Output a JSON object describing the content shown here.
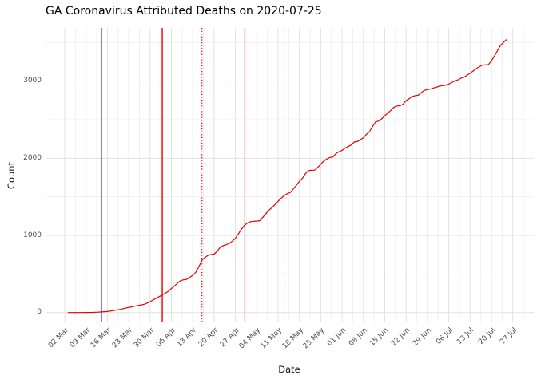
{
  "title": "GA Coronavirus Attributed Deaths on 2020-07-25",
  "chart_data": {
    "type": "line",
    "title": "GA Coronavirus Attributed Deaths on 2020-07-25",
    "xlabel": "Date",
    "ylabel": "Count",
    "legend": "none",
    "grid": "major+minor",
    "background": "#ffffff",
    "major_grid_color": "#e2e2e2",
    "minor_grid_color": "#f0f0f0",
    "line_color": "#e60000",
    "tick_label_color": "#4d4d4d",
    "x_base": "2020-03-02",
    "x_domain_days": [
      -6.3,
      153.9
    ],
    "ylim": [
      -127,
      3689
    ],
    "y_ticks": [
      0,
      1000,
      2000,
      3000
    ],
    "y_minor_ticks": [
      500,
      1500,
      2500,
      3500
    ],
    "x_tick_labels": [
      "02 Mar",
      "09 Mar",
      "16 Mar",
      "23 Mar",
      "30 Mar",
      "06 Apr",
      "13 Apr",
      "20 Apr",
      "27 Apr",
      "04 May",
      "11 May",
      "18 May",
      "25 May",
      "01 Jun",
      "08 Jun",
      "15 Jun",
      "22 Jun",
      "29 Jun",
      "06 Jul",
      "13 Jul",
      "20 Jul",
      "27 Jul"
    ],
    "vlines": [
      {
        "date": "2020-03-14",
        "color": "#0000ee",
        "style": "solid"
      },
      {
        "date": "2020-04-03",
        "color": "#ee0000",
        "style": "solid"
      },
      {
        "date": "2020-04-16",
        "color": "#ee0000",
        "style": "dotted"
      },
      {
        "date": "2020-04-30",
        "color": "#ffb6c1",
        "style": "solid"
      },
      {
        "date": "2020-05-13",
        "color": "#ffb6c1",
        "style": "dotted"
      }
    ],
    "points": [
      [
        "2020-03-03",
        0
      ],
      [
        "2020-03-05",
        0
      ],
      [
        "2020-03-07",
        0
      ],
      [
        "2020-03-09",
        1
      ],
      [
        "2020-03-11",
        2
      ],
      [
        "2020-03-13",
        5
      ],
      [
        "2020-03-14",
        8
      ],
      [
        "2020-03-16",
        14
      ],
      [
        "2020-03-18",
        26
      ],
      [
        "2020-03-20",
        40
      ],
      [
        "2020-03-22",
        58
      ],
      [
        "2020-03-24",
        75
      ],
      [
        "2020-03-26",
        92
      ],
      [
        "2020-03-28",
        106
      ],
      [
        "2020-03-30",
        140
      ],
      [
        "2020-03-31",
        165
      ],
      [
        "2020-04-01",
        185
      ],
      [
        "2020-04-02",
        207
      ],
      [
        "2020-04-03",
        229
      ],
      [
        "2020-04-04",
        250
      ],
      [
        "2020-04-05",
        276
      ],
      [
        "2020-04-06",
        311
      ],
      [
        "2020-04-07",
        345
      ],
      [
        "2020-04-08",
        381
      ],
      [
        "2020-04-09",
        414
      ],
      [
        "2020-04-10",
        424
      ],
      [
        "2020-04-11",
        431
      ],
      [
        "2020-04-12",
        456
      ],
      [
        "2020-04-13",
        483
      ],
      [
        "2020-04-14",
        521
      ],
      [
        "2020-04-15",
        592
      ],
      [
        "2020-04-16",
        680
      ],
      [
        "2020-04-17",
        714
      ],
      [
        "2020-04-18",
        742
      ],
      [
        "2020-04-19",
        752
      ],
      [
        "2020-04-20",
        757
      ],
      [
        "2020-04-21",
        793
      ],
      [
        "2020-04-22",
        845
      ],
      [
        "2020-04-23",
        868
      ],
      [
        "2020-04-24",
        881
      ],
      [
        "2020-04-25",
        897
      ],
      [
        "2020-04-26",
        926
      ],
      [
        "2020-04-27",
        962
      ],
      [
        "2020-04-28",
        1022
      ],
      [
        "2020-04-29",
        1082
      ],
      [
        "2020-04-30",
        1132
      ],
      [
        "2020-05-01",
        1162
      ],
      [
        "2020-05-02",
        1178
      ],
      [
        "2020-05-03",
        1183
      ],
      [
        "2020-05-04",
        1185
      ],
      [
        "2020-05-05",
        1192
      ],
      [
        "2020-05-06",
        1235
      ],
      [
        "2020-05-07",
        1281
      ],
      [
        "2020-05-08",
        1327
      ],
      [
        "2020-05-09",
        1361
      ],
      [
        "2020-05-10",
        1400
      ],
      [
        "2020-05-11",
        1442
      ],
      [
        "2020-05-12",
        1481
      ],
      [
        "2020-05-13",
        1516
      ],
      [
        "2020-05-14",
        1541
      ],
      [
        "2020-05-15",
        1557
      ],
      [
        "2020-05-16",
        1601
      ],
      [
        "2020-05-17",
        1650
      ],
      [
        "2020-05-18",
        1700
      ],
      [
        "2020-05-19",
        1741
      ],
      [
        "2020-05-20",
        1802
      ],
      [
        "2020-05-21",
        1840
      ],
      [
        "2020-05-22",
        1844
      ],
      [
        "2020-05-23",
        1846
      ],
      [
        "2020-05-24",
        1881
      ],
      [
        "2020-05-25",
        1922
      ],
      [
        "2020-05-26",
        1965
      ],
      [
        "2020-05-27",
        1990
      ],
      [
        "2020-05-28",
        2010
      ],
      [
        "2020-05-29",
        2017
      ],
      [
        "2020-05-30",
        2061
      ],
      [
        "2020-05-31",
        2086
      ],
      [
        "2020-06-01",
        2103
      ],
      [
        "2020-06-02",
        2131
      ],
      [
        "2020-06-03",
        2151
      ],
      [
        "2020-06-04",
        2172
      ],
      [
        "2020-06-05",
        2211
      ],
      [
        "2020-06-06",
        2217
      ],
      [
        "2020-06-07",
        2241
      ],
      [
        "2020-06-08",
        2265
      ],
      [
        "2020-06-09",
        2311
      ],
      [
        "2020-06-10",
        2345
      ],
      [
        "2020-06-11",
        2411
      ],
      [
        "2020-06-12",
        2472
      ],
      [
        "2020-06-13",
        2482
      ],
      [
        "2020-06-14",
        2511
      ],
      [
        "2020-06-15",
        2551
      ],
      [
        "2020-06-16",
        2586
      ],
      [
        "2020-06-17",
        2620
      ],
      [
        "2020-06-18",
        2661
      ],
      [
        "2020-06-19",
        2678
      ],
      [
        "2020-06-20",
        2681
      ],
      [
        "2020-06-21",
        2701
      ],
      [
        "2020-06-22",
        2747
      ],
      [
        "2020-06-23",
        2771
      ],
      [
        "2020-06-24",
        2802
      ],
      [
        "2020-06-25",
        2811
      ],
      [
        "2020-06-26",
        2817
      ],
      [
        "2020-06-27",
        2851
      ],
      [
        "2020-06-28",
        2879
      ],
      [
        "2020-06-29",
        2891
      ],
      [
        "2020-06-30",
        2896
      ],
      [
        "2020-07-01",
        2911
      ],
      [
        "2020-07-02",
        2921
      ],
      [
        "2020-07-03",
        2936
      ],
      [
        "2020-07-04",
        2941
      ],
      [
        "2020-07-05",
        2947
      ],
      [
        "2020-07-06",
        2961
      ],
      [
        "2020-07-07",
        2982
      ],
      [
        "2020-07-08",
        3001
      ],
      [
        "2020-07-09",
        3016
      ],
      [
        "2020-07-10",
        3036
      ],
      [
        "2020-07-11",
        3051
      ],
      [
        "2020-07-12",
        3076
      ],
      [
        "2020-07-13",
        3102
      ],
      [
        "2020-07-14",
        3131
      ],
      [
        "2020-07-15",
        3161
      ],
      [
        "2020-07-16",
        3186
      ],
      [
        "2020-07-17",
        3206
      ],
      [
        "2020-07-18",
        3211
      ],
      [
        "2020-07-19",
        3213
      ],
      [
        "2020-07-20",
        3261
      ],
      [
        "2020-07-21",
        3326
      ],
      [
        "2020-07-22",
        3395
      ],
      [
        "2020-07-23",
        3464
      ],
      [
        "2020-07-24",
        3502
      ],
      [
        "2020-07-25",
        3540
      ]
    ]
  }
}
